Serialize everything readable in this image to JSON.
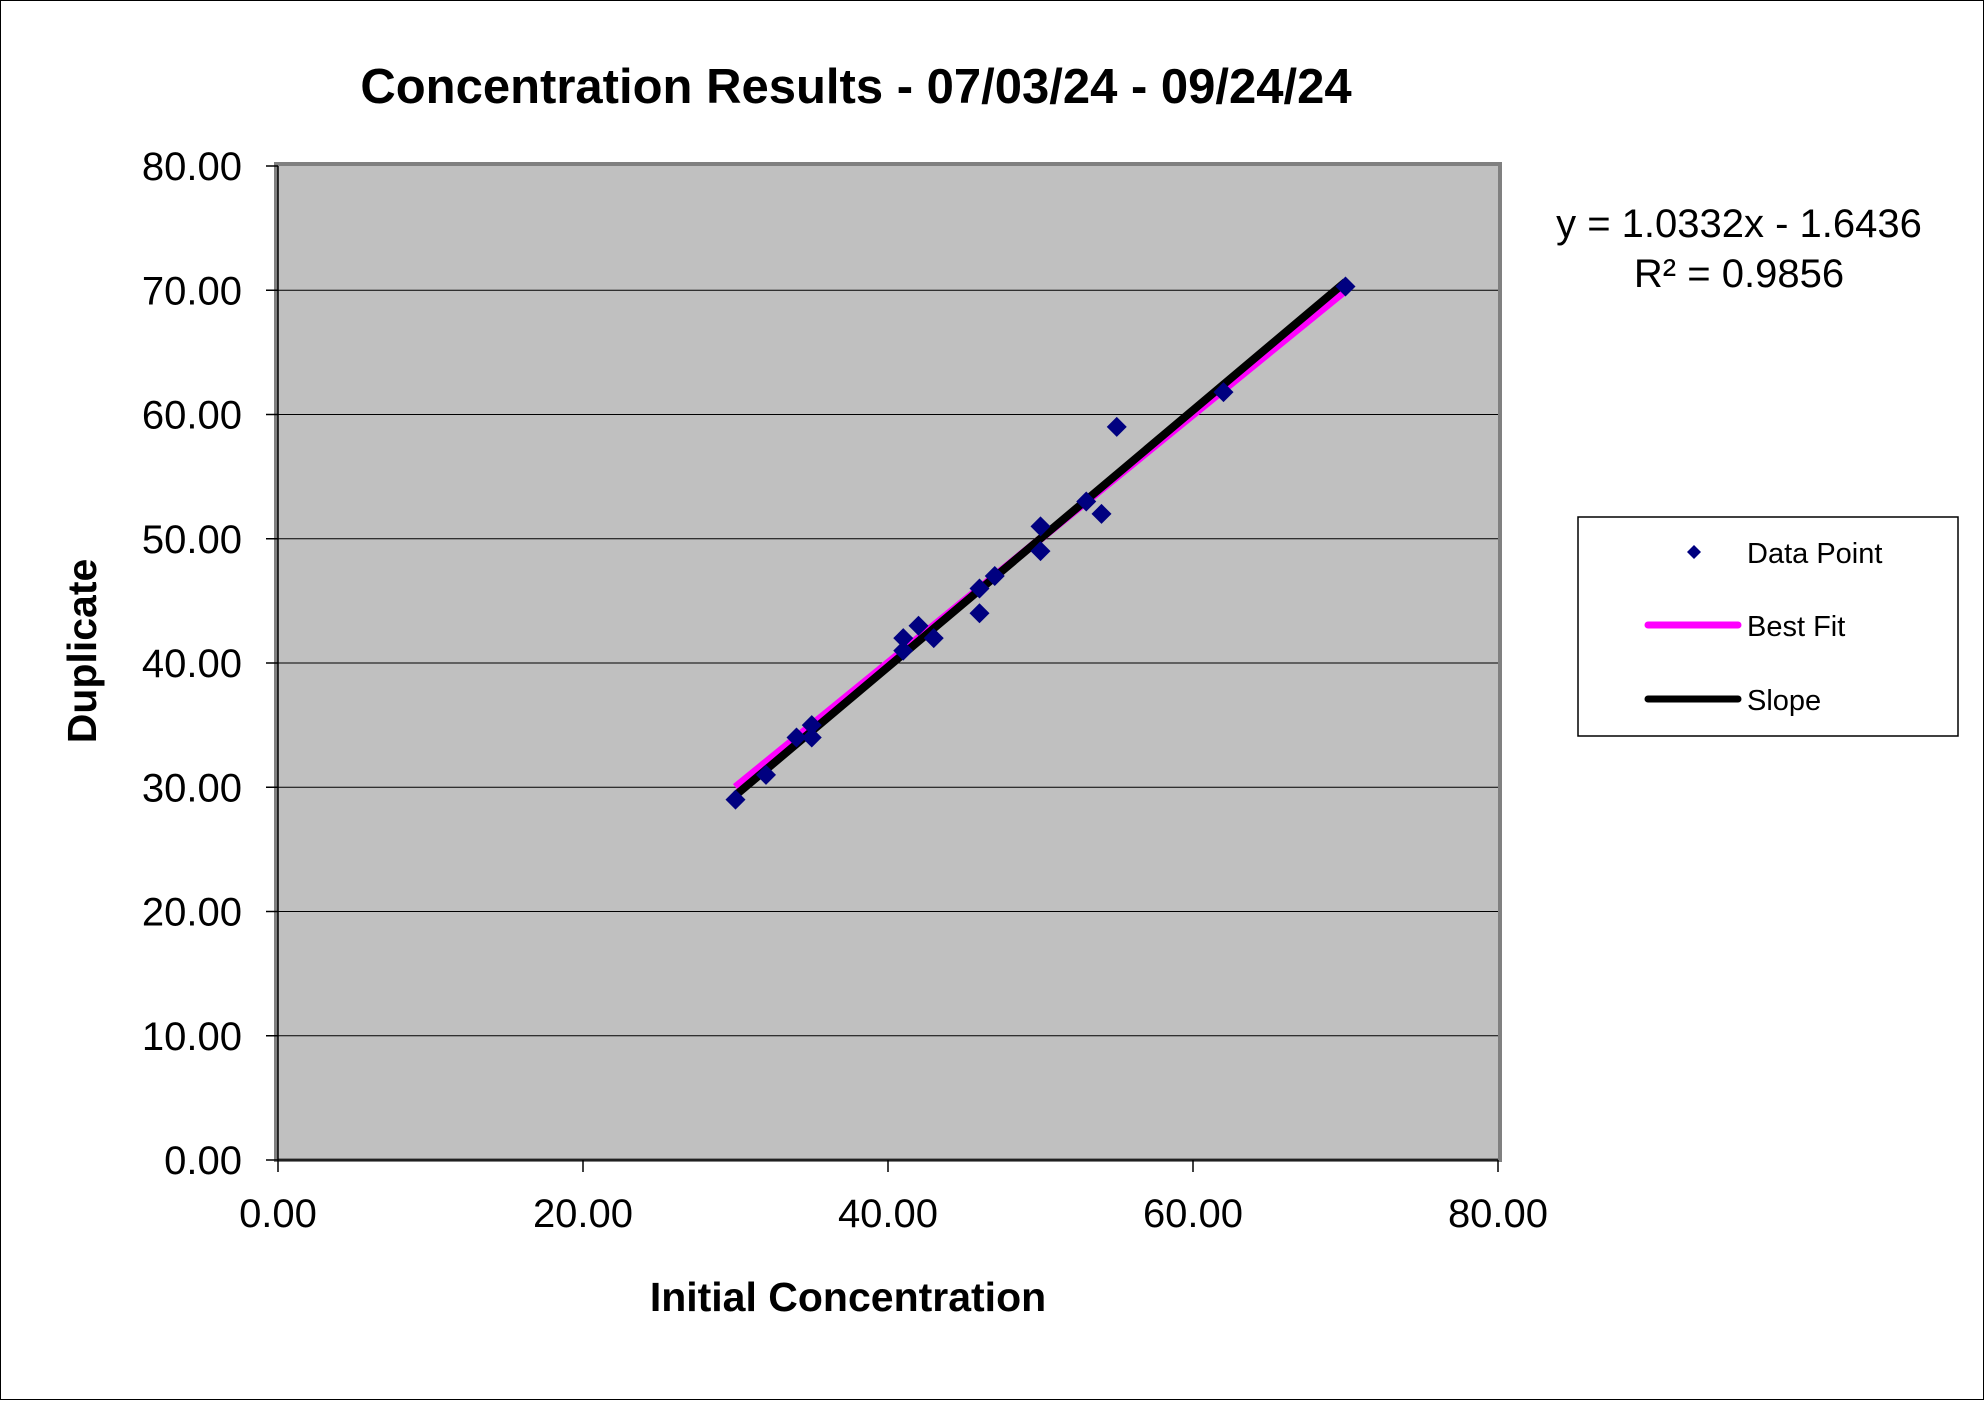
{
  "chart_data": {
    "type": "scatter",
    "title": "Concentration Results - 07/03/24 - 09/24/24",
    "xlabel": "Initial Concentration",
    "ylabel": "Duplicate",
    "xlim": [
      0,
      80
    ],
    "ylim": [
      0,
      80
    ],
    "x_ticks": [
      "0.00",
      "20.00",
      "40.00",
      "60.00",
      "80.00"
    ],
    "y_ticks": [
      "0.00",
      "10.00",
      "20.00",
      "30.00",
      "40.00",
      "50.00",
      "60.00",
      "70.00",
      "80.00"
    ],
    "grid": "horizontal",
    "legend_position": "right",
    "plot_background": "#c0c0c0",
    "series": [
      {
        "name": "Data Point",
        "kind": "markers",
        "marker": "diamond",
        "color": "#000080",
        "points": [
          [
            30,
            29
          ],
          [
            32,
            31
          ],
          [
            34,
            34
          ],
          [
            35,
            35
          ],
          [
            35,
            34
          ],
          [
            41,
            41
          ],
          [
            41,
            42
          ],
          [
            42,
            43
          ],
          [
            43,
            42
          ],
          [
            46,
            46
          ],
          [
            46,
            44
          ],
          [
            47,
            47
          ],
          [
            50,
            51
          ],
          [
            50,
            49
          ],
          [
            53,
            53
          ],
          [
            54,
            52
          ],
          [
            55,
            59
          ],
          [
            62,
            61.8
          ],
          [
            70,
            70.3
          ]
        ]
      },
      {
        "name": "Best Fit",
        "kind": "line",
        "color": "#ff00ff",
        "points": [
          [
            30,
            30
          ],
          [
            70,
            70
          ]
        ]
      },
      {
        "name": "Slope",
        "kind": "line",
        "color": "#000000",
        "points": [
          [
            30,
            29.35
          ],
          [
            70,
            70.68
          ]
        ]
      }
    ],
    "annotations": [
      {
        "text": "y = 1.0332x - 1.6436"
      },
      {
        "text": "R² = 0.9856"
      }
    ]
  }
}
